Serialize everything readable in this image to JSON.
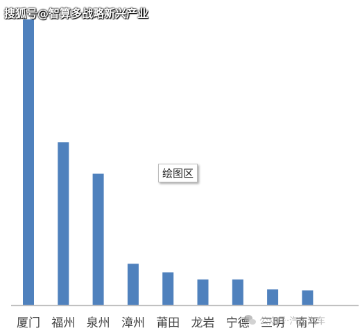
{
  "watermark_top": "搜狐号@智算多战略新兴产业",
  "tooltip": "绘图区",
  "watermark_bottom": "公众号·汽车汽车",
  "colors": {
    "bar": "#4F81BD",
    "axis": "#BFBFBF",
    "label": "#404040"
  },
  "chart_data": {
    "type": "bar",
    "categories": [
      "厦门",
      "福州",
      "泉州",
      "漳州",
      "莆田",
      "龙岩",
      "宁德",
      "三明",
      "南平"
    ],
    "values": [
      100,
      57,
      46,
      14.5,
      11.5,
      9,
      9,
      5.5,
      5.2
    ],
    "ylim": [
      0,
      100
    ],
    "grid": false,
    "legend": "none",
    "title": "",
    "xlabel": "",
    "ylabel": ""
  }
}
